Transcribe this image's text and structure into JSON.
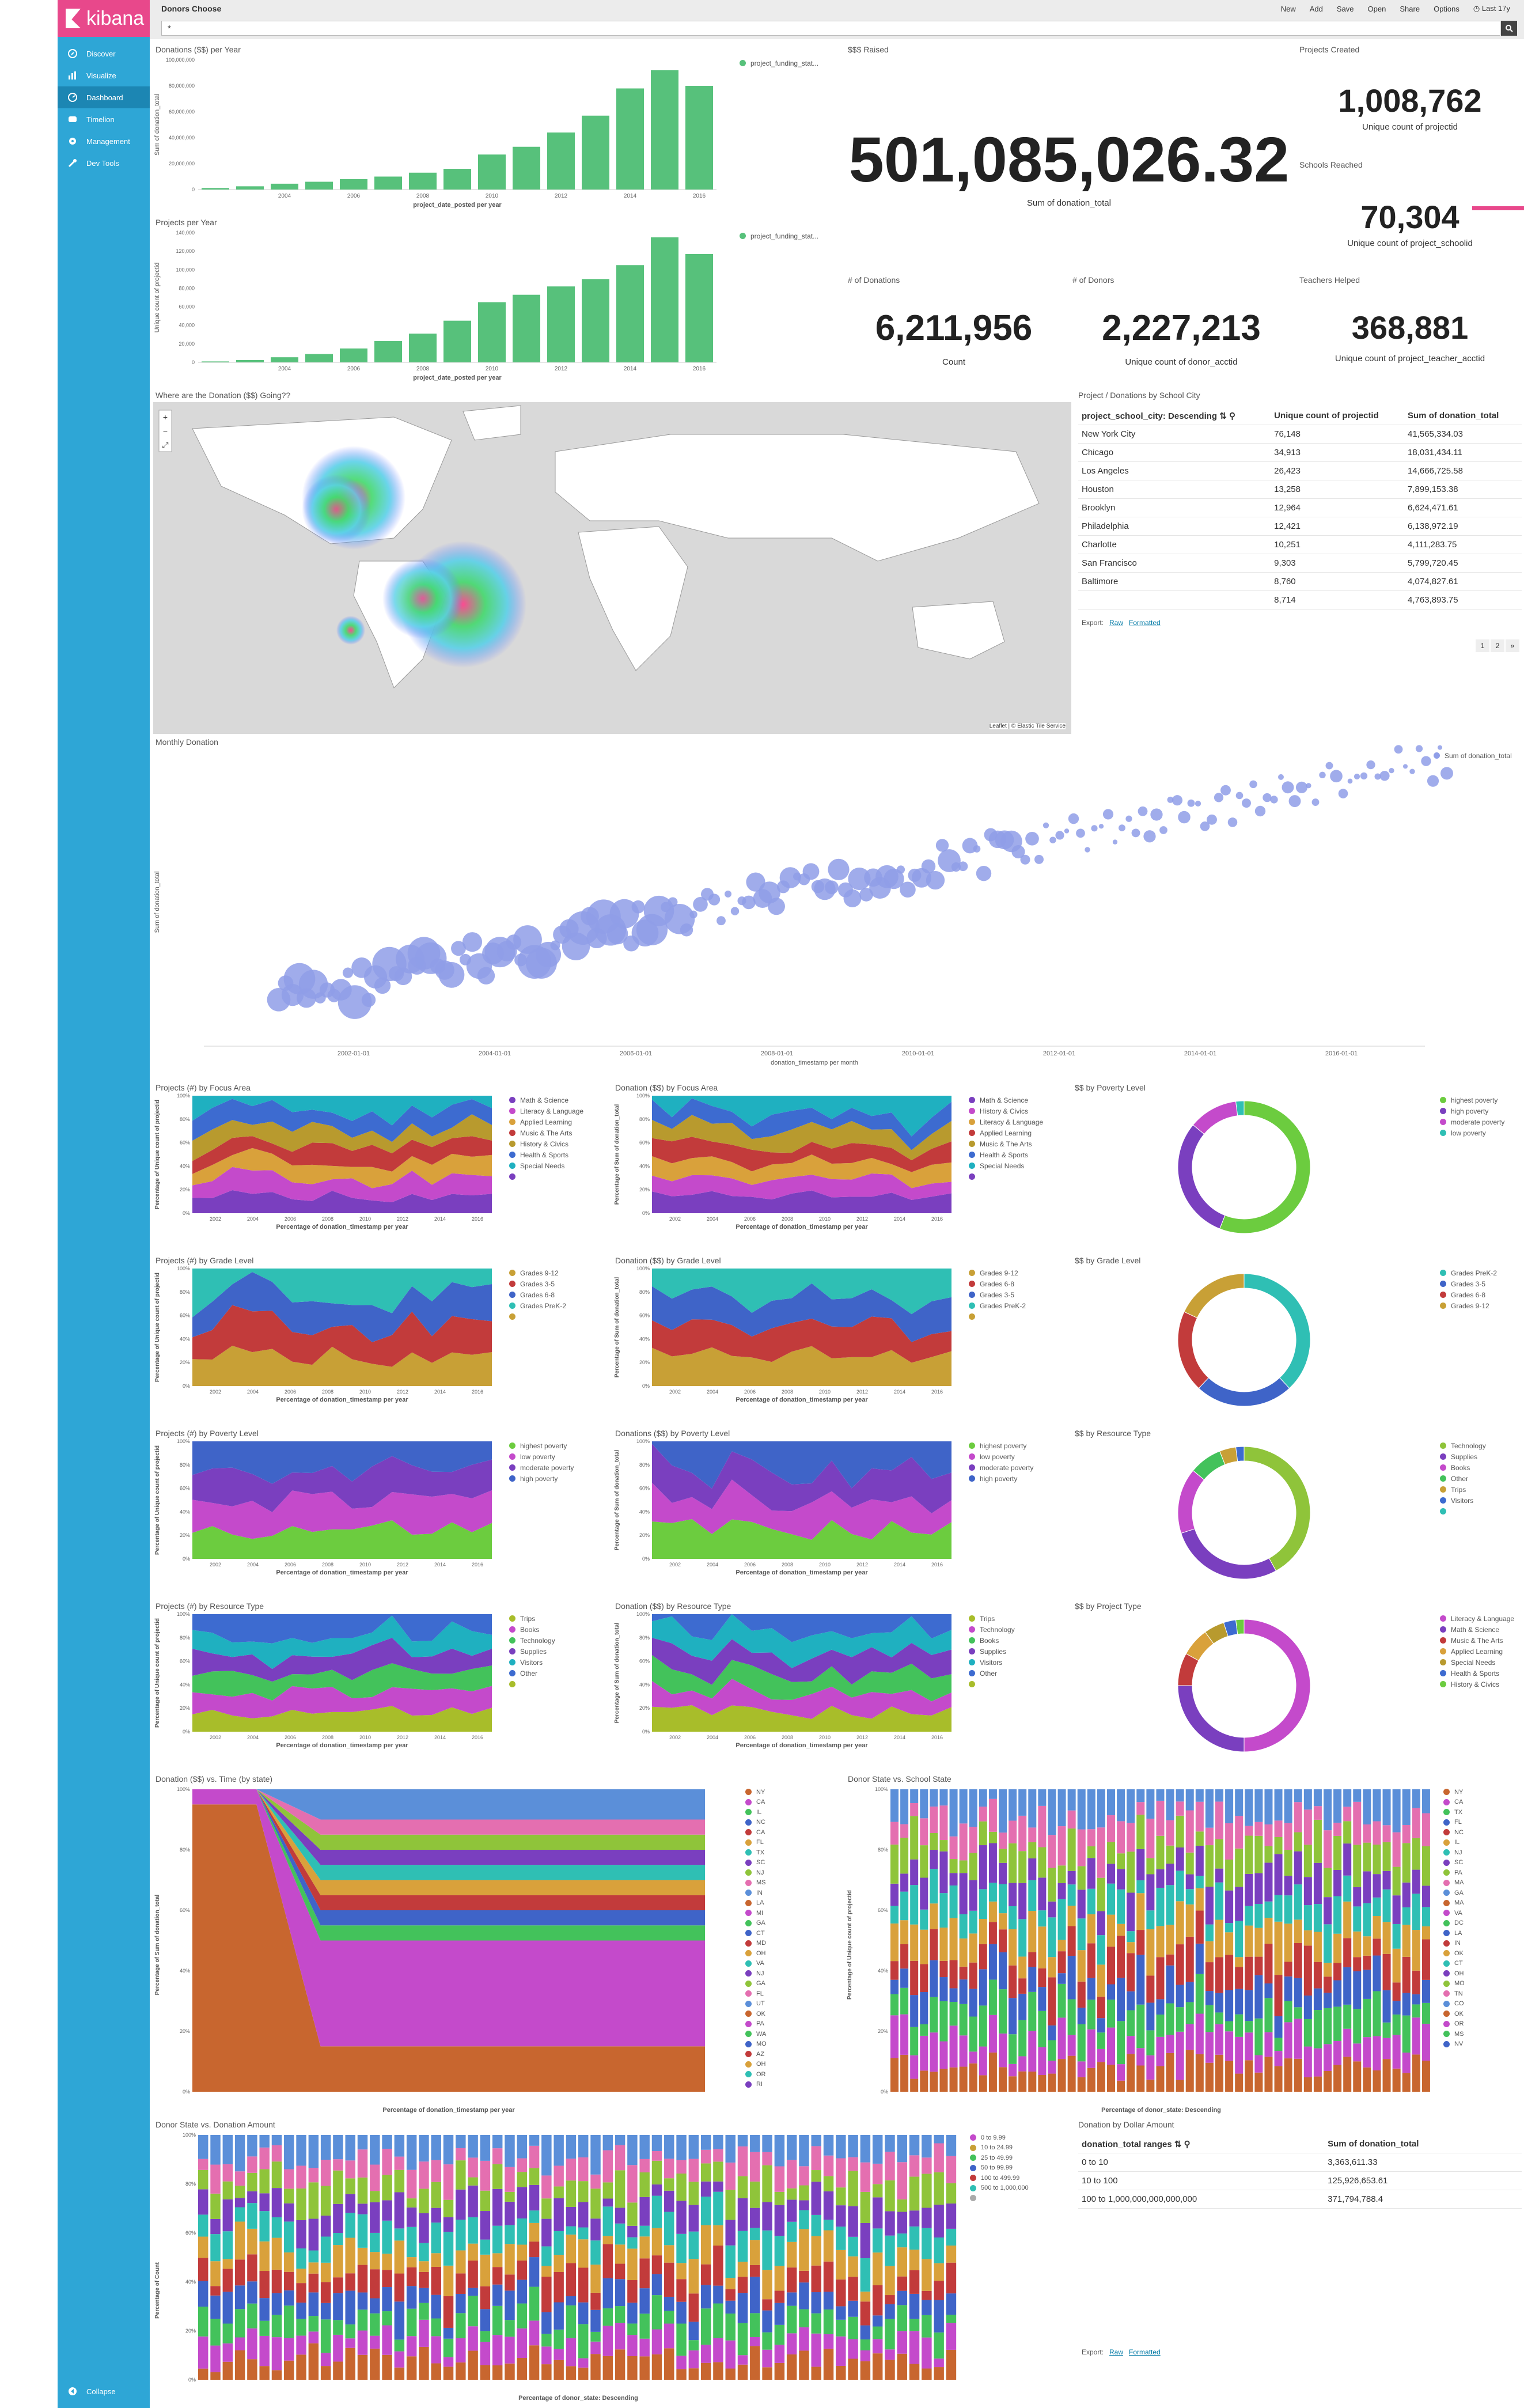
{
  "app": {
    "name": "kibana",
    "dashboard_title": "Donors Choose",
    "time": "Last 17y"
  },
  "topbar": {
    "new": "New",
    "add": "Add",
    "save": "Save",
    "share": "Share",
    "open": "Open",
    "options": "Options"
  },
  "query": {
    "value": "*"
  },
  "sidebar": {
    "items": [
      {
        "label": "Discover",
        "icon": "compass-icon"
      },
      {
        "label": "Visualize",
        "icon": "bar-chart-icon"
      },
      {
        "label": "Dashboard",
        "icon": "dashboard-icon"
      },
      {
        "label": "Timelion",
        "icon": "timelion-icon"
      },
      {
        "label": "Management",
        "icon": "gear-icon"
      },
      {
        "label": "Dev Tools",
        "icon": "wrench-icon"
      }
    ],
    "collapse": "Collapse"
  },
  "colors": {
    "accent": "#e8488b",
    "sidebar": "#2ea6d6",
    "green": "#57c17b"
  },
  "panels": {
    "donations_per_year": {
      "title": "Donations ($$) per Year",
      "xlabel": "project_date_posted per year",
      "ylabel": "Sum of donation_total",
      "legend": "project_funding_stat..."
    },
    "raised": {
      "title": "$$$ Raised",
      "value": "501,085,026.32",
      "label": "Sum of donation_total"
    },
    "projects_created": {
      "title": "Projects Created",
      "value": "1,008,762",
      "label": "Unique count of projectid"
    },
    "schools_reached": {
      "title": "Schools Reached",
      "value": "70,304",
      "label": "Unique count of project_schoolid"
    },
    "projects_per_year": {
      "title": "Projects per Year",
      "xlabel": "project_date_posted per year",
      "ylabel": "Unique count of projectid",
      "legend": "project_funding_stat..."
    },
    "num_donations": {
      "title": "# of Donations",
      "value": "6,211,956",
      "label": "Count"
    },
    "num_donors": {
      "title": "# of Donors",
      "value": "2,227,213",
      "label": "Unique count of donor_acctid"
    },
    "teachers_helped": {
      "title": "Teachers Helped",
      "value": "368,881",
      "label": "Unique count of project_teacher_acctid"
    },
    "map": {
      "title": "Where are the Donation ($$) Going??",
      "attribution": "Leaflet | © Elastic Tile Service"
    },
    "city_table": {
      "title": "Project / Donations by School City",
      "headers": [
        "project_school_city: Descending",
        "Unique count of projectid",
        "Sum of donation_total"
      ],
      "rows": [
        [
          "New York City",
          "76,148",
          "41,565,334.03"
        ],
        [
          "Chicago",
          "34,913",
          "18,031,434.11"
        ],
        [
          "Los Angeles",
          "26,423",
          "14,666,725.58"
        ],
        [
          "Houston",
          "13,258",
          "7,899,153.38"
        ],
        [
          "Brooklyn",
          "12,964",
          "6,624,471.61"
        ],
        [
          "Philadelphia",
          "12,421",
          "6,138,972.19"
        ],
        [
          "Charlotte",
          "10,251",
          "4,111,283.75"
        ],
        [
          "San Francisco",
          "9,303",
          "5,799,720.45"
        ],
        [
          "Baltimore",
          "8,760",
          "4,074,827.61"
        ],
        [
          "",
          "8,714",
          "4,763,893.75"
        ]
      ],
      "export": "Export:",
      "raw": "Raw",
      "formatted": "Formatted",
      "pages": [
        "1",
        "2",
        "»"
      ]
    },
    "monthly": {
      "title": "Monthly Donation",
      "xlabel": "donation_timestamp per month",
      "ylabel": "Sum of donation_total",
      "legend": "Sum of donation_total",
      "xticks": [
        "2002-01-01",
        "2004-01-01",
        "2006-01-01",
        "2008-01-01",
        "2010-01-01",
        "2012-01-01",
        "2014-01-01",
        "2016-01-01"
      ]
    },
    "focus_proj": {
      "title": "Projects (#) by Focus Area",
      "ylabel": "Percentage of Unique count of projectid",
      "xlabel": "Percentage of donation_timestamp per year"
    },
    "focus_don": {
      "title": "Donation ($$) by Focus Area",
      "ylabel": "Percentage of Sum of donation_total",
      "xlabel": "Percentage of donation_timestamp per year"
    },
    "poverty_pie": {
      "title": "$$ by Poverty Level"
    },
    "grade_proj": {
      "title": "Projects (#) by Grade Level",
      "ylabel": "Percentage of Unique count of projectid",
      "xlabel": "Percentage of donation_timestamp per year"
    },
    "grade_don": {
      "title": "Donation ($$) by Grade Level",
      "ylabel": "Percentage of Sum of donation_total",
      "xlabel": "Percentage of donation_timestamp per year"
    },
    "grade_pie": {
      "title": "$$ by Grade Level"
    },
    "pov_proj": {
      "title": "Projects (#) by Poverty Level",
      "ylabel": "Percentage of Unique count of projectid",
      "xlabel": "Percentage of donation_timestamp per year"
    },
    "pov_don": {
      "title": "Donations ($$) by Poverty Level",
      "ylabel": "Percentage of Sum of donation_total",
      "xlabel": "Percentage of donation_timestamp per year"
    },
    "resource_pie": {
      "title": "$$ by Resource Type"
    },
    "res_proj": {
      "title": "Projects (#) by Resource Type",
      "ylabel": "Percentage of Unique count of projectid",
      "xlabel": "Percentage of donation_timestamp per year"
    },
    "res_don": {
      "title": "Donation ($$) by Resource Type",
      "ylabel": "Percentage of Sum of donation_total",
      "xlabel": "Percentage of donation_timestamp per year"
    },
    "projtype_pie": {
      "title": "$$ by Project Type"
    },
    "state_time": {
      "title": "Donation ($$) vs. Time (by state)",
      "ylabel": "Percentage of Sum of donation_total",
      "xlabel": "Percentage of donation_timestamp per year"
    },
    "donor_school_state": {
      "title": "Donor State vs. School State",
      "ylabel": "Percentage of Unique count of projectid",
      "xlabel": "Percentage of donor_state: Descending"
    },
    "donor_amount": {
      "title": "Donor State vs. Donation Amount",
      "ylabel": "Percentage of Count",
      "xlabel": "Percentage of donor_state: Descending"
    },
    "dollar_table": {
      "title": "Donation by Dollar Amount",
      "headers": [
        "donation_total ranges",
        "Sum of donation_total"
      ],
      "rows": [
        [
          "0 to 10",
          "3,363,611.33"
        ],
        [
          "10 to 100",
          "125,926,653.61"
        ],
        [
          "100 to 1,000,000,000,000,000",
          "371,794,788.4"
        ]
      ],
      "export": "Export:",
      "raw": "Raw",
      "formatted": "Formatted"
    }
  },
  "legends": {
    "focus": [
      "Math & Science",
      "Literacy & Language",
      "Applied Learning",
      "Music & The Arts",
      "History & Civics",
      "Health & Sports",
      "Special Needs",
      ""
    ],
    "focus_don": [
      "Math & Science",
      "History & Civics",
      "Literacy & Language",
      "Applied Learning",
      "Music & The Arts",
      "Health & Sports",
      "Special Needs",
      ""
    ],
    "poverty_pie": [
      "highest poverty",
      "high poverty",
      "moderate poverty",
      "low poverty"
    ],
    "grade": [
      "Grades 9-12",
      "Grades 3-5",
      "Grades 6-8",
      "Grades PreK-2",
      ""
    ],
    "grade_don": [
      "Grades 9-12",
      "Grades 6-8",
      "Grades 3-5",
      "Grades PreK-2",
      ""
    ],
    "grade_pie": [
      "Grades PreK-2",
      "Grades 3-5",
      "Grades 6-8",
      "Grades 9-12"
    ],
    "pov": [
      "highest poverty",
      "low poverty",
      "moderate poverty",
      "high poverty"
    ],
    "pov_don": [
      "highest poverty",
      "low poverty",
      "moderate poverty",
      "high poverty"
    ],
    "resource_pie": [
      "Technology",
      "Supplies",
      "Books",
      "Other",
      "Trips",
      "Visitors",
      ""
    ],
    "res": [
      "Trips",
      "Books",
      "Technology",
      "Supplies",
      "Visitors",
      "Other",
      ""
    ],
    "res_don": [
      "Trips",
      "Technology",
      "Books",
      "Supplies",
      "Visitors",
      "Other",
      ""
    ],
    "projtype_pie": [
      "Literacy & Language",
      "Math & Science",
      "Music & The Arts",
      "Applied Learning",
      "Special Needs",
      "Health & Sports",
      "History & Civics"
    ],
    "states1": [
      "NY",
      "CA",
      "IL",
      "NC",
      "CA",
      "FL",
      "TX",
      "SC",
      "NJ",
      "MS",
      "IN",
      "LA",
      "MI",
      "GA",
      "CT",
      "MD",
      "OH",
      "VA",
      "NJ",
      "GA",
      "FL",
      "UT",
      "OK",
      "PA",
      "WA",
      "MO",
      "AZ",
      "OH",
      "OR",
      "RI"
    ],
    "states2": [
      "NY",
      "CA",
      "TX",
      "FL",
      "NC",
      "IL",
      "NJ",
      "SC",
      "PA",
      "MA",
      "GA",
      "MA",
      "VA",
      "DC",
      "LA",
      "IN",
      "OK",
      "CT",
      "OH",
      "MO",
      "TN",
      "CO",
      "OK",
      "OR",
      "MS",
      "NV"
    ],
    "amount": [
      "0 to 9.99",
      "10 to 24.99",
      "25 to 49.99",
      "50 to 99.99",
      "100 to 499.99",
      "500 to 1,000,000",
      ""
    ]
  },
  "chart_data": [
    {
      "type": "bar",
      "name": "Donations ($$) per Year",
      "categories": [
        "2002",
        "2003",
        "2004",
        "2005",
        "2006",
        "2007",
        "2008",
        "2009",
        "2010",
        "2011",
        "2012",
        "2013",
        "2014",
        "2015",
        "2016"
      ],
      "values": [
        1200000,
        2500000,
        4500000,
        6000000,
        8000000,
        10000000,
        13000000,
        16000000,
        27000000,
        33000000,
        44000000,
        57000000,
        78000000,
        92000000,
        80000000
      ],
      "ylim": [
        0,
        100000000
      ],
      "yticks": [
        0,
        20000000,
        40000000,
        60000000,
        80000000,
        100000000
      ],
      "xticks": [
        "2004",
        "2006",
        "2008",
        "2010",
        "2012",
        "2014",
        "2016"
      ]
    },
    {
      "type": "bar",
      "name": "Projects per Year",
      "categories": [
        "2002",
        "2003",
        "2004",
        "2005",
        "2006",
        "2007",
        "2008",
        "2009",
        "2010",
        "2011",
        "2012",
        "2013",
        "2014",
        "2015",
        "2016"
      ],
      "values": [
        1000,
        2500,
        5500,
        9000,
        15000,
        23000,
        31000,
        45000,
        65000,
        73000,
        82000,
        90000,
        105000,
        135000,
        117000
      ],
      "ylim": [
        0,
        140000
      ],
      "yticks": [
        0,
        20000,
        40000,
        60000,
        80000,
        100000,
        120000,
        140000
      ],
      "xticks": [
        "2004",
        "2006",
        "2008",
        "2010",
        "2012",
        "2014",
        "2016"
      ]
    }
  ]
}
